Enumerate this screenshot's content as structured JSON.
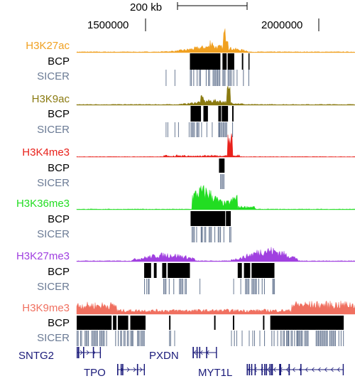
{
  "ruler": {
    "scale_label": "200 kb",
    "coord_left": "1500000",
    "coord_right": "2000000"
  },
  "tracks": [
    {
      "name": "H3K27ac",
      "color": "#f0a020",
      "bcp_label": "BCP",
      "sicer_label": "SICER",
      "bcp_blocks": [
        [
          1628000,
          1716000
        ],
        [
          1722000,
          1734000
        ],
        [
          1737000,
          1756000
        ],
        [
          1778000,
          1782000
        ],
        [
          1797000,
          1800000
        ]
      ],
      "sicer_range": [
        1548000,
        1800000
      ]
    },
    {
      "name": "H3K9ac",
      "color": "#8a7a10",
      "bcp_label": "BCP",
      "sicer_label": "SICER",
      "bcp_blocks": [
        [
          1630000,
          1660000
        ],
        [
          1667000,
          1680000
        ],
        [
          1710000,
          1718000
        ],
        [
          1720000,
          1738000
        ],
        [
          1750000,
          1754000
        ]
      ],
      "sicer_range": [
        1548000,
        1760000
      ]
    },
    {
      "name": "H3K4me3",
      "color": "#e8201a",
      "bcp_label": "BCP",
      "sicer_label": "SICER",
      "bcp_blocks": [
        [
          1712000,
          1728000
        ]
      ],
      "sicer_range": [
        1710000,
        1728000
      ]
    },
    {
      "name": "H3K36me3",
      "color": "#22dd22",
      "bcp_label": "BCP",
      "sicer_label": "SICER",
      "bcp_blocks": [
        [
          1630000,
          1730000
        ],
        [
          1732000,
          1746000
        ]
      ],
      "sicer_range": [
        1630000,
        1746000
      ]
    },
    {
      "name": "H3K27me3",
      "color": "#a040e0",
      "bcp_label": "BCP",
      "sicer_label": "SICER",
      "bcp_blocks": [
        [
          1496000,
          1516000
        ],
        [
          1524000,
          1532000
        ],
        [
          1548000,
          1560000
        ],
        [
          1564000,
          1628000
        ],
        [
          1766000,
          1778000
        ],
        [
          1784000,
          1802000
        ],
        [
          1806000,
          1872000
        ]
      ],
      "sicer_range": [
        1492000,
        1882000
      ]
    },
    {
      "name": "H3K9me3",
      "color": "#f07060",
      "bcp_label": "BCP",
      "sicer_label": "SICER",
      "bcp_blocks": [
        [
          1300000,
          1402000
        ],
        [
          1406000,
          1416000
        ],
        [
          1420000,
          1450000
        ],
        [
          1456000,
          1500000
        ],
        [
          1568000,
          1572000
        ],
        [
          1698000,
          1702000
        ],
        [
          1752000,
          1756000
        ],
        [
          1839000,
          1843000
        ],
        [
          1860000,
          2072000
        ]
      ],
      "sicer_range": [
        1300000,
        2072000
      ]
    }
  ],
  "genes": [
    {
      "name": "SNTG2",
      "row": 1,
      "start": 1300000,
      "end": 1371000
    },
    {
      "name": "PXDN",
      "row": 1,
      "start": 1636000,
      "end": 1706000
    },
    {
      "name": "TPO",
      "row": 2,
      "start": 1418000,
      "end": 1498000
    },
    {
      "name": "MYT1L",
      "row": 2,
      "start": 1792000,
      "end": 2072000
    }
  ],
  "colors": {
    "bcp": "#000000",
    "sicer": "#6b7b95",
    "sicer_label": "#6b7b95",
    "gene": "#1a1a7a"
  }
}
